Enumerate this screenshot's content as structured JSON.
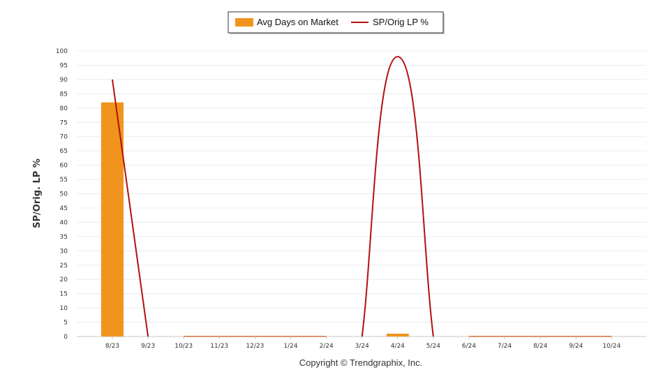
{
  "chart_data": {
    "type": "bar",
    "categories": [
      "8/23",
      "9/23",
      "10/23",
      "11/23",
      "12/23",
      "1/24",
      "2/24",
      "3/24",
      "4/24",
      "5/24",
      "6/24",
      "7/24",
      "8/24",
      "9/24",
      "10/24"
    ],
    "series": [
      {
        "name": "Avg Days on Market",
        "type": "bar",
        "color": "#F0941E",
        "values": [
          82,
          0,
          0,
          0,
          0,
          0,
          0,
          0,
          1,
          0,
          0,
          0,
          0,
          0,
          0
        ]
      },
      {
        "name": "SP/Orig LP %",
        "type": "line",
        "color": "#B40F0F",
        "values": [
          90,
          0,
          0,
          0,
          0,
          0,
          0,
          0,
          98,
          0,
          0,
          0,
          0,
          0,
          0
        ]
      }
    ],
    "ylabel": "SP/Orig. LP %",
    "ylim": [
      0,
      100
    ],
    "yticks": [
      0,
      5,
      10,
      15,
      20,
      25,
      30,
      35,
      40,
      45,
      50,
      55,
      60,
      65,
      70,
      75,
      80,
      85,
      90,
      95,
      100
    ],
    "grid": true,
    "legend_position": "top-center",
    "footer": "Copyright © Trendgraphix, Inc."
  }
}
